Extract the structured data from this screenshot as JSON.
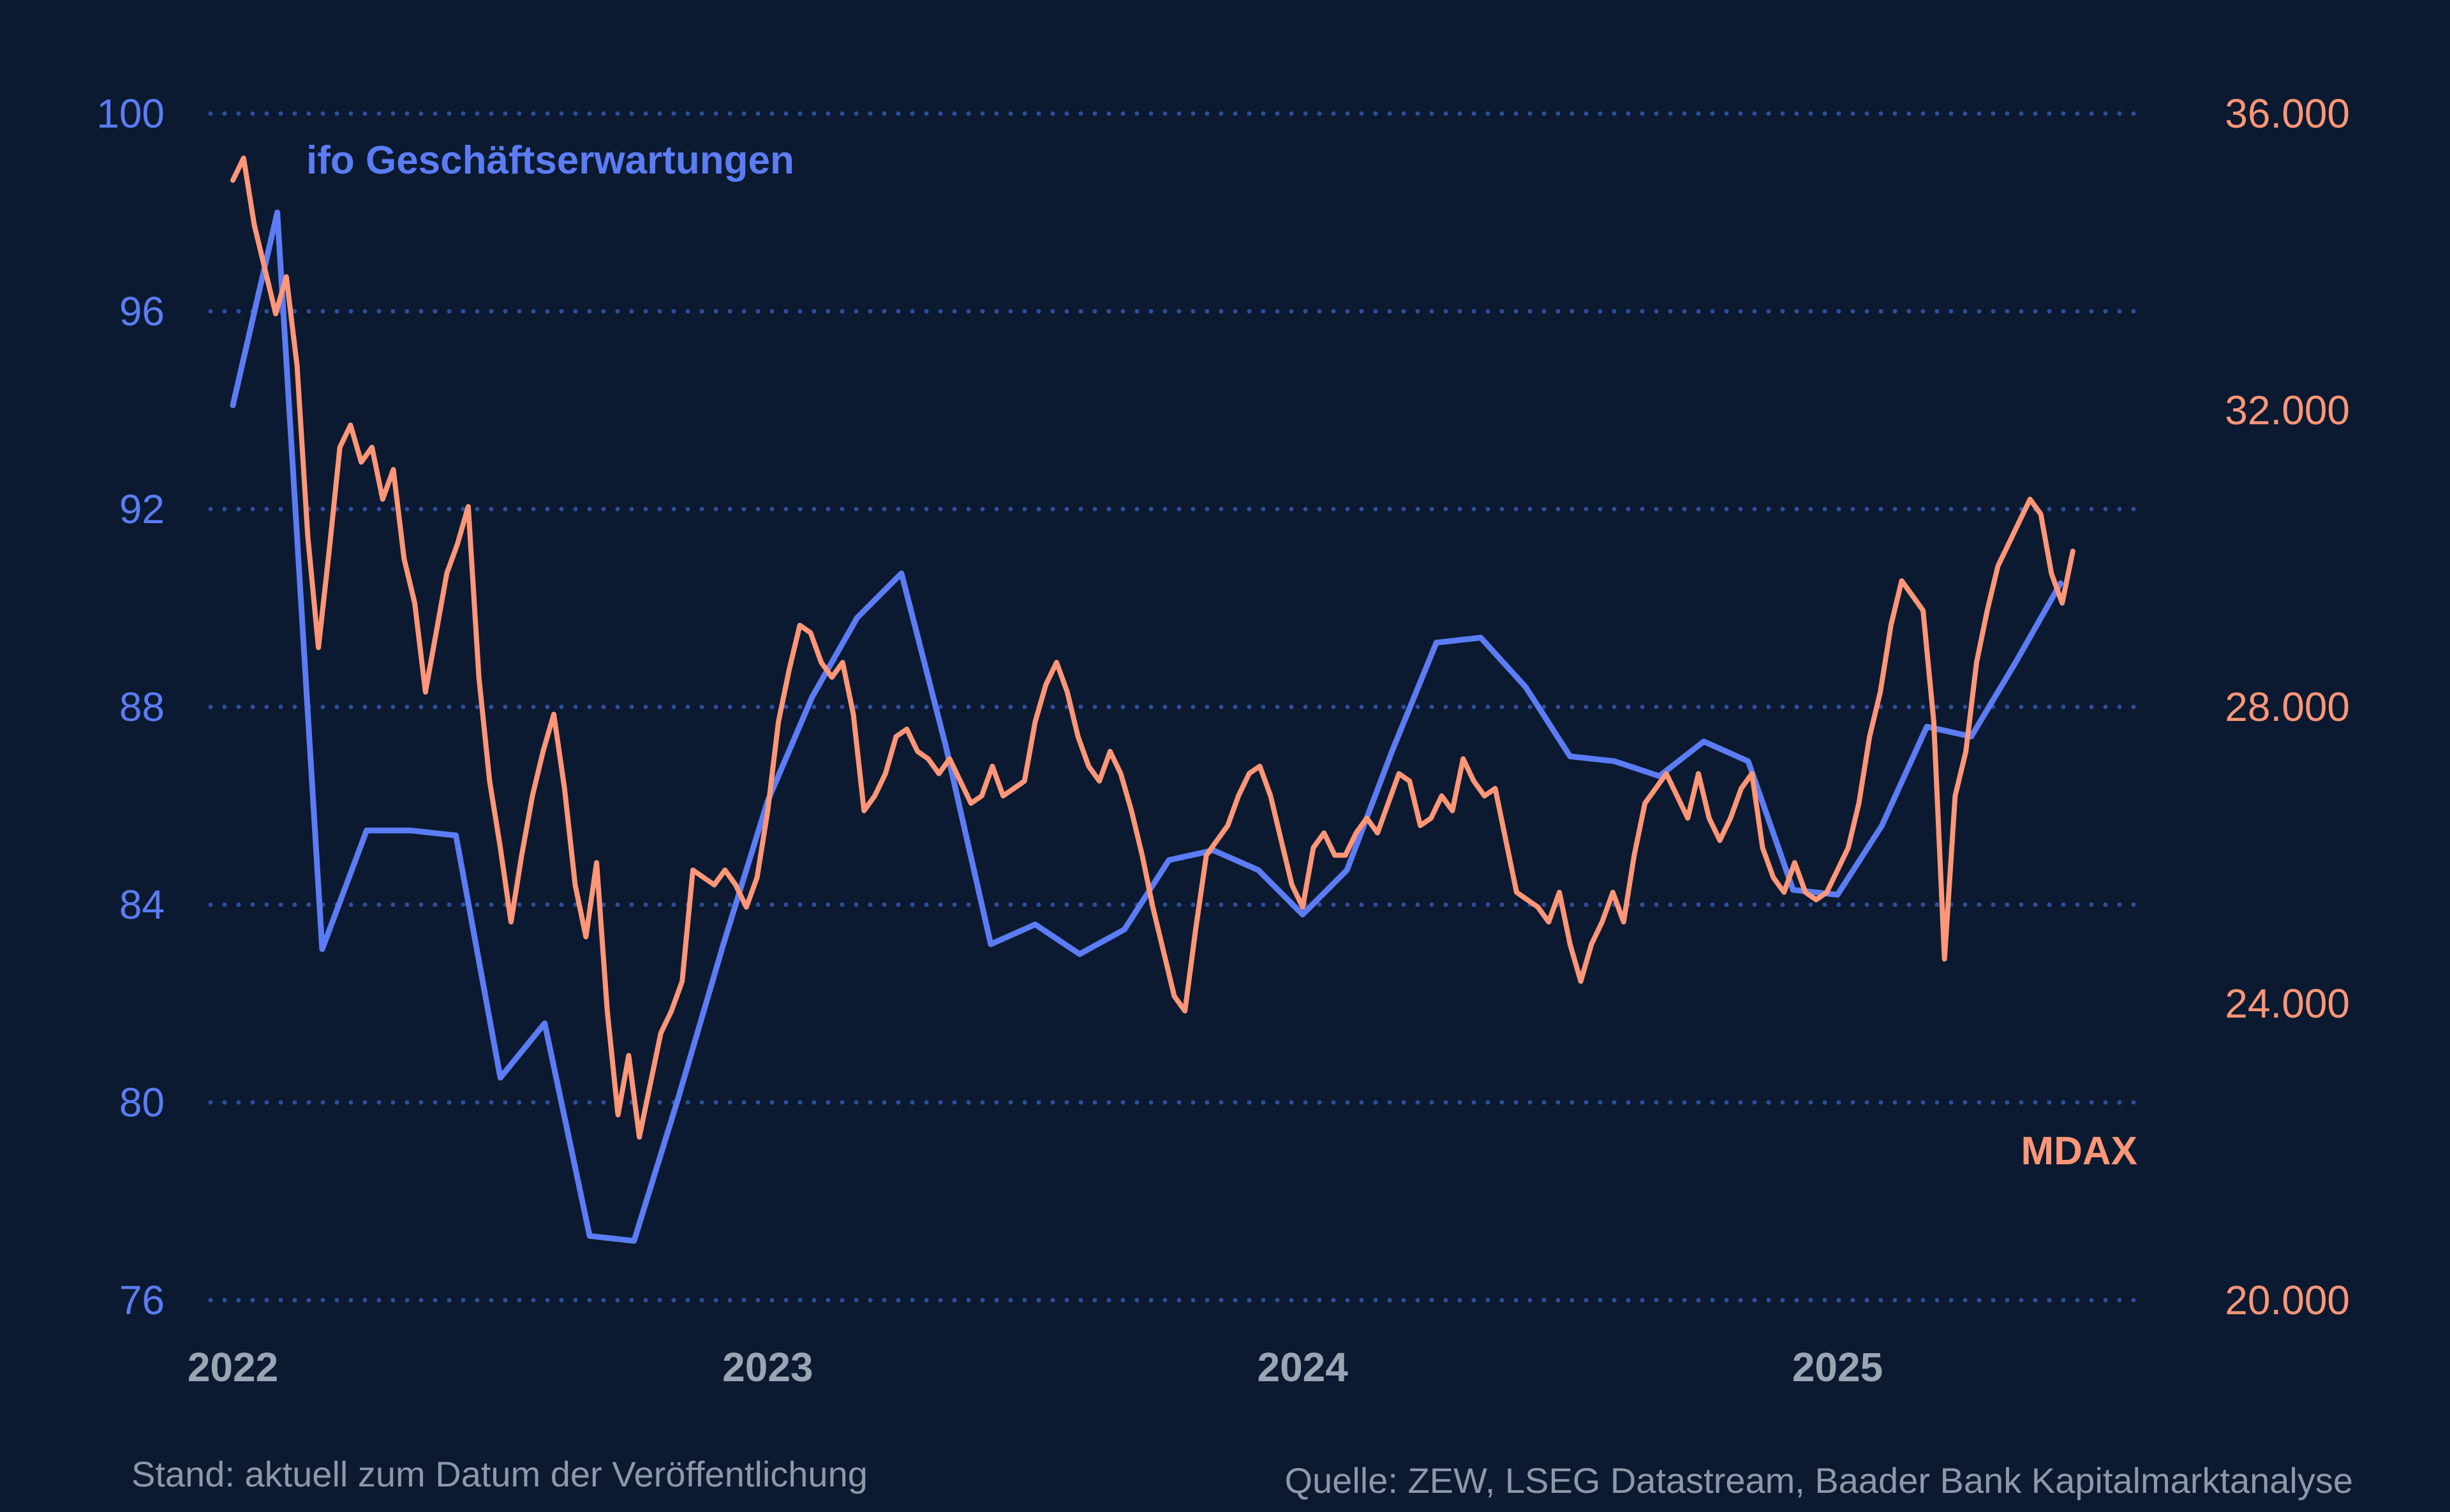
{
  "colors": {
    "background": "#0b1a30",
    "ifo": "#5b7cf4",
    "mdax": "#ff9677",
    "grid": "#2f4e9c",
    "year_label": "#9aa5b4",
    "footer": "#8e98a8"
  },
  "footer": {
    "stand": "Stand: aktuell zum Datum der Veröffentlichung",
    "source": "Quelle: ZEW, LSEG Datastream, Baader Bank Kapitalmarktanalyse"
  },
  "chart_data": {
    "type": "line",
    "x_ticks": [
      "2022",
      "2023",
      "2024",
      "2025"
    ],
    "xlim": [
      2022.0,
      2025.65
    ],
    "grid": "horizontal dotted",
    "y_left": {
      "ticks": [
        "100",
        "96",
        "92",
        "88",
        "84",
        "80",
        "76"
      ],
      "range": [
        76,
        100
      ]
    },
    "y_right": {
      "ticks": [
        "36.000",
        "32.000",
        "28.000",
        "24.000",
        "20.000"
      ],
      "range": [
        20000,
        36000
      ]
    },
    "series": [
      {
        "name": "ifo Geschäftserwartungen",
        "axis": "left",
        "label": "ifo Geschäftserwartungen",
        "points": [
          [
            2022.0,
            94.1
          ],
          [
            2022.083,
            98.0
          ],
          [
            2022.167,
            83.1
          ],
          [
            2022.25,
            85.5
          ],
          [
            2022.333,
            85.5
          ],
          [
            2022.417,
            85.4
          ],
          [
            2022.5,
            80.5
          ],
          [
            2022.583,
            81.6
          ],
          [
            2022.667,
            77.3
          ],
          [
            2022.75,
            77.2
          ],
          [
            2022.833,
            80.1
          ],
          [
            2022.917,
            83.2
          ],
          [
            2023.0,
            86.1
          ],
          [
            2023.083,
            88.2
          ],
          [
            2023.167,
            89.8
          ],
          [
            2023.25,
            90.7
          ],
          [
            2023.333,
            87.2
          ],
          [
            2023.417,
            83.2
          ],
          [
            2023.5,
            83.6
          ],
          [
            2023.583,
            83.0
          ],
          [
            2023.667,
            83.5
          ],
          [
            2023.75,
            84.9
          ],
          [
            2023.833,
            85.1
          ],
          [
            2023.917,
            84.7
          ],
          [
            2024.0,
            83.8
          ],
          [
            2024.083,
            84.7
          ],
          [
            2024.167,
            87.1
          ],
          [
            2024.25,
            89.3
          ],
          [
            2024.333,
            89.4
          ],
          [
            2024.417,
            88.4
          ],
          [
            2024.5,
            87.0
          ],
          [
            2024.583,
            86.9
          ],
          [
            2024.667,
            86.6
          ],
          [
            2024.75,
            87.3
          ],
          [
            2024.833,
            86.9
          ],
          [
            2024.917,
            84.3
          ],
          [
            2025.0,
            84.2
          ],
          [
            2025.083,
            85.6
          ],
          [
            2025.167,
            87.6
          ],
          [
            2025.25,
            87.4
          ],
          [
            2025.333,
            88.9
          ],
          [
            2025.417,
            90.5
          ]
        ]
      },
      {
        "name": "MDAX",
        "axis": "right",
        "label": "MDAX",
        "points": [
          [
            2022.0,
            35100
          ],
          [
            2022.02,
            35400
          ],
          [
            2022.04,
            34500
          ],
          [
            2022.06,
            33900
          ],
          [
            2022.08,
            33300
          ],
          [
            2022.1,
            33800
          ],
          [
            2022.12,
            32600
          ],
          [
            2022.14,
            30300
          ],
          [
            2022.16,
            28800
          ],
          [
            2022.18,
            30100
          ],
          [
            2022.2,
            31500
          ],
          [
            2022.22,
            31800
          ],
          [
            2022.24,
            31300
          ],
          [
            2022.26,
            31500
          ],
          [
            2022.28,
            30800
          ],
          [
            2022.3,
            31200
          ],
          [
            2022.32,
            30000
          ],
          [
            2022.34,
            29400
          ],
          [
            2022.36,
            28200
          ],
          [
            2022.38,
            29000
          ],
          [
            2022.4,
            29800
          ],
          [
            2022.42,
            30200
          ],
          [
            2022.44,
            30700
          ],
          [
            2022.46,
            28400
          ],
          [
            2022.48,
            27000
          ],
          [
            2022.5,
            26100
          ],
          [
            2022.52,
            25100
          ],
          [
            2022.54,
            26000
          ],
          [
            2022.56,
            26800
          ],
          [
            2022.58,
            27400
          ],
          [
            2022.6,
            27900
          ],
          [
            2022.62,
            26900
          ],
          [
            2022.64,
            25600
          ],
          [
            2022.66,
            24900
          ],
          [
            2022.68,
            25900
          ],
          [
            2022.7,
            23900
          ],
          [
            2022.72,
            22500
          ],
          [
            2022.74,
            23300
          ],
          [
            2022.76,
            22200
          ],
          [
            2022.78,
            22900
          ],
          [
            2022.8,
            23600
          ],
          [
            2022.82,
            23900
          ],
          [
            2022.84,
            24300
          ],
          [
            2022.86,
            25800
          ],
          [
            2022.88,
            25700
          ],
          [
            2022.9,
            25600
          ],
          [
            2022.92,
            25800
          ],
          [
            2022.94,
            25600
          ],
          [
            2022.96,
            25300
          ],
          [
            2022.98,
            25700
          ],
          [
            2023.0,
            26600
          ],
          [
            2023.02,
            27800
          ],
          [
            2023.04,
            28500
          ],
          [
            2023.06,
            29100
          ],
          [
            2023.08,
            29000
          ],
          [
            2023.1,
            28600
          ],
          [
            2023.12,
            28400
          ],
          [
            2023.14,
            28600
          ],
          [
            2023.16,
            27900
          ],
          [
            2023.18,
            26600
          ],
          [
            2023.2,
            26800
          ],
          [
            2023.22,
            27100
          ],
          [
            2023.24,
            27600
          ],
          [
            2023.26,
            27700
          ],
          [
            2023.28,
            27400
          ],
          [
            2023.3,
            27300
          ],
          [
            2023.32,
            27100
          ],
          [
            2023.34,
            27300
          ],
          [
            2023.36,
            27000
          ],
          [
            2023.38,
            26700
          ],
          [
            2023.4,
            26800
          ],
          [
            2023.42,
            27200
          ],
          [
            2023.44,
            26800
          ],
          [
            2023.46,
            26900
          ],
          [
            2023.48,
            27000
          ],
          [
            2023.5,
            27800
          ],
          [
            2023.52,
            28300
          ],
          [
            2023.54,
            28600
          ],
          [
            2023.56,
            28200
          ],
          [
            2023.58,
            27600
          ],
          [
            2023.6,
            27200
          ],
          [
            2023.62,
            27000
          ],
          [
            2023.64,
            27400
          ],
          [
            2023.66,
            27100
          ],
          [
            2023.68,
            26600
          ],
          [
            2023.7,
            26000
          ],
          [
            2023.72,
            25300
          ],
          [
            2023.74,
            24700
          ],
          [
            2023.76,
            24100
          ],
          [
            2023.78,
            23900
          ],
          [
            2023.8,
            25000
          ],
          [
            2023.82,
            26000
          ],
          [
            2023.84,
            26200
          ],
          [
            2023.86,
            26400
          ],
          [
            2023.88,
            26800
          ],
          [
            2023.9,
            27100
          ],
          [
            2023.92,
            27200
          ],
          [
            2023.94,
            26800
          ],
          [
            2023.96,
            26200
          ],
          [
            2023.98,
            25600
          ],
          [
            2024.0,
            25300
          ],
          [
            2024.02,
            26100
          ],
          [
            2024.04,
            26300
          ],
          [
            2024.06,
            26000
          ],
          [
            2024.08,
            26000
          ],
          [
            2024.1,
            26300
          ],
          [
            2024.12,
            26500
          ],
          [
            2024.14,
            26300
          ],
          [
            2024.16,
            26700
          ],
          [
            2024.18,
            27100
          ],
          [
            2024.2,
            27000
          ],
          [
            2024.22,
            26400
          ],
          [
            2024.24,
            26500
          ],
          [
            2024.26,
            26800
          ],
          [
            2024.28,
            26600
          ],
          [
            2024.3,
            27300
          ],
          [
            2024.32,
            27000
          ],
          [
            2024.34,
            26800
          ],
          [
            2024.36,
            26900
          ],
          [
            2024.38,
            26200
          ],
          [
            2024.4,
            25500
          ],
          [
            2024.42,
            25400
          ],
          [
            2024.44,
            25300
          ],
          [
            2024.46,
            25100
          ],
          [
            2024.48,
            25500
          ],
          [
            2024.5,
            24800
          ],
          [
            2024.52,
            24300
          ],
          [
            2024.54,
            24800
          ],
          [
            2024.56,
            25100
          ],
          [
            2024.58,
            25500
          ],
          [
            2024.6,
            25100
          ],
          [
            2024.62,
            26000
          ],
          [
            2024.64,
            26700
          ],
          [
            2024.66,
            26900
          ],
          [
            2024.68,
            27100
          ],
          [
            2024.7,
            26800
          ],
          [
            2024.72,
            26500
          ],
          [
            2024.74,
            27100
          ],
          [
            2024.76,
            26500
          ],
          [
            2024.78,
            26200
          ],
          [
            2024.8,
            26500
          ],
          [
            2024.82,
            26900
          ],
          [
            2024.84,
            27100
          ],
          [
            2024.86,
            26100
          ],
          [
            2024.88,
            25700
          ],
          [
            2024.9,
            25500
          ],
          [
            2024.92,
            25900
          ],
          [
            2024.94,
            25500
          ],
          [
            2024.96,
            25400
          ],
          [
            2024.98,
            25500
          ],
          [
            2025.0,
            25800
          ],
          [
            2025.02,
            26100
          ],
          [
            2025.04,
            26700
          ],
          [
            2025.06,
            27600
          ],
          [
            2025.08,
            28200
          ],
          [
            2025.1,
            29100
          ],
          [
            2025.12,
            29700
          ],
          [
            2025.14,
            29500
          ],
          [
            2025.16,
            29300
          ],
          [
            2025.18,
            27800
          ],
          [
            2025.2,
            24600
          ],
          [
            2025.22,
            26800
          ],
          [
            2025.24,
            27400
          ],
          [
            2025.26,
            28600
          ],
          [
            2025.28,
            29300
          ],
          [
            2025.3,
            29900
          ],
          [
            2025.32,
            30200
          ],
          [
            2025.34,
            30500
          ],
          [
            2025.36,
            30800
          ],
          [
            2025.38,
            30600
          ],
          [
            2025.4,
            29800
          ],
          [
            2025.42,
            29400
          ],
          [
            2025.44,
            30100
          ]
        ]
      }
    ]
  }
}
